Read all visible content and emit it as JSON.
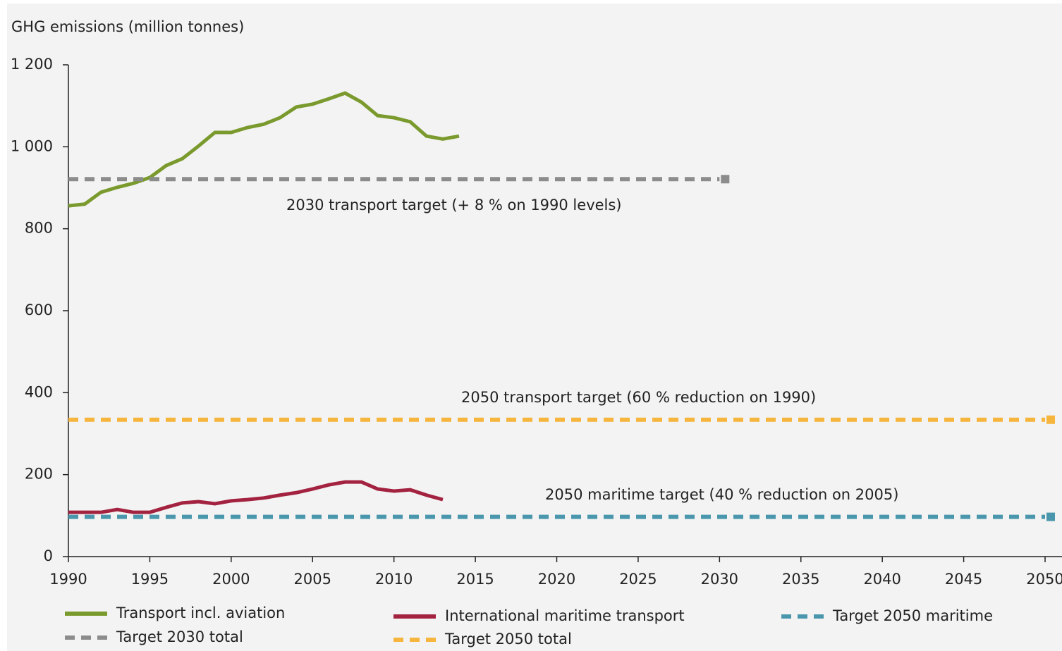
{
  "chart_data": {
    "type": "line",
    "y_axis_label": "GHG emissions (million tonnes)",
    "xlim": [
      1990,
      2050
    ],
    "xticks": [
      1990,
      1995,
      2000,
      2005,
      2010,
      2015,
      2020,
      2025,
      2030,
      2035,
      2040,
      2045,
      2050
    ],
    "ylim": [
      0,
      1200
    ],
    "yticks": [
      0,
      200,
      400,
      600,
      800,
      {
        "value": 1000,
        "label": "1 000"
      },
      {
        "value": 1200,
        "label": "1 200"
      }
    ],
    "series": [
      {
        "name": "Transport incl. aviation",
        "color": "#7a9a2e",
        "dashed": false,
        "x": [
          1990,
          1991,
          1992,
          1993,
          1994,
          1995,
          1996,
          1997,
          1998,
          1999,
          2000,
          2001,
          2002,
          2003,
          2004,
          2005,
          2006,
          2007,
          2008,
          2009,
          2010,
          2011,
          2012,
          2013,
          2014
        ],
        "values": [
          856,
          860,
          889,
          901,
          911,
          925,
          954,
          971,
          1002,
          1035,
          1035,
          1047,
          1055,
          1071,
          1097,
          1104,
          1117,
          1131,
          1109,
          1076,
          1071,
          1061,
          1026,
          1019,
          1026
        ]
      },
      {
        "name": "Target 2030 total",
        "color": "#8c8c8c",
        "dashed": true,
        "x": [
          1990,
          2030
        ],
        "values": [
          921,
          921
        ]
      },
      {
        "name": "International maritime transport",
        "color": "#a3223f",
        "dashed": false,
        "x": [
          1990,
          1991,
          1992,
          1993,
          1994,
          1995,
          1996,
          1997,
          1998,
          1999,
          2000,
          2001,
          2002,
          2003,
          2004,
          2005,
          2006,
          2007,
          2008,
          2009,
          2010,
          2011,
          2012,
          2013
        ],
        "values": [
          108,
          108,
          108,
          115,
          108,
          108,
          120,
          131,
          134,
          129,
          136,
          139,
          143,
          150,
          156,
          165,
          175,
          182,
          182,
          165,
          160,
          163,
          150,
          139
        ]
      },
      {
        "name": "Target 2050 total",
        "color": "#f6b53d",
        "dashed": true,
        "x": [
          1990,
          2050
        ],
        "values": [
          334,
          334
        ]
      },
      {
        "name": "Target 2050 maritime",
        "color": "#4a97ad",
        "dashed": true,
        "x": [
          1990,
          2050
        ],
        "values": [
          97,
          97
        ]
      }
    ],
    "annotations": [
      "2030 transport target (+ 8 % on 1990 levels)",
      "2050 transport target (60 % reduction on 1990)",
      "2050 maritime target (40 % reduction on 2005)"
    ]
  }
}
